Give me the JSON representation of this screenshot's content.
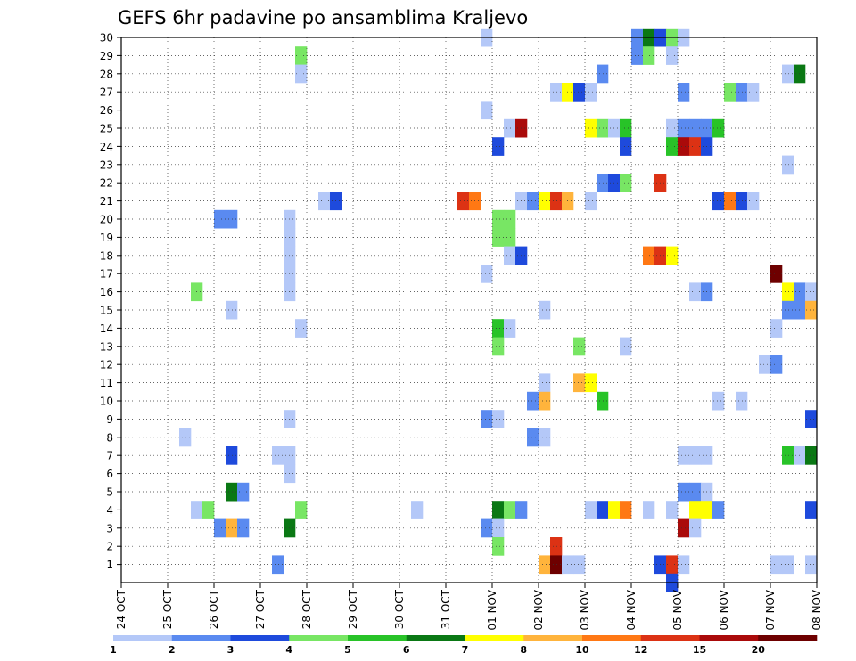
{
  "chart_data": {
    "type": "heatmap",
    "title": "GEFS 6hr padavine po ansamblima Kraljevo",
    "xlabel": "",
    "ylabel": "",
    "x_tick_labels": [
      "24 OCT",
      "25 OCT",
      "26 OCT",
      "27 OCT",
      "28 OCT",
      "29 OCT",
      "30 OCT",
      "31 OCT",
      "01 NOV",
      "02 NOV",
      "03 NOV",
      "04 NOV",
      "05 NOV",
      "06 NOV",
      "07 NOV",
      "08 NOV"
    ],
    "y_tick_labels": [
      "1",
      "2",
      "3",
      "4",
      "5",
      "6",
      "7",
      "8",
      "9",
      "10",
      "11",
      "12",
      "13",
      "14",
      "15",
      "16",
      "17",
      "18",
      "19",
      "20",
      "21",
      "22",
      "23",
      "24",
      "25",
      "26",
      "27",
      "28",
      "29",
      "30"
    ],
    "x_range_days": [
      0,
      15
    ],
    "y_range": [
      0,
      30
    ],
    "grid": true,
    "time_step_hours": 6,
    "levels": [
      1,
      2,
      3,
      4,
      5,
      6,
      7,
      8,
      10,
      12,
      15,
      20
    ],
    "colorbar_labels": [
      "1",
      "2",
      "3",
      "4",
      "5",
      "6",
      "7",
      "8",
      "10",
      "12",
      "15",
      "20"
    ],
    "colors": [
      "#b4c8f8",
      "#5a8af0",
      "#1e4adc",
      "#78e664",
      "#28c328",
      "#0a7814",
      "#ffff00",
      "#ffb43c",
      "#ff7814",
      "#dc3214",
      "#aa0a0a",
      "#6e0000"
    ],
    "cells": [
      {
        "member": 30,
        "step": 31,
        "cls": 0
      },
      {
        "member": 30,
        "step": 44,
        "cls": 1
      },
      {
        "member": 30,
        "step": 45,
        "cls": 5
      },
      {
        "member": 30,
        "step": 46,
        "cls": 2
      },
      {
        "member": 30,
        "step": 47,
        "cls": 3
      },
      {
        "member": 30,
        "step": 48,
        "cls": 0
      },
      {
        "member": 29,
        "step": 15,
        "cls": 3
      },
      {
        "member": 29,
        "step": 44,
        "cls": 1
      },
      {
        "member": 29,
        "step": 45,
        "cls": 3
      },
      {
        "member": 29,
        "step": 47,
        "cls": 0
      },
      {
        "member": 28,
        "step": 15,
        "cls": 0
      },
      {
        "member": 28,
        "step": 41,
        "cls": 1
      },
      {
        "member": 28,
        "step": 57,
        "cls": 0
      },
      {
        "member": 28,
        "step": 58,
        "cls": 5
      },
      {
        "member": 27,
        "step": 37,
        "cls": 0
      },
      {
        "member": 27,
        "step": 38,
        "cls": 6
      },
      {
        "member": 27,
        "step": 39,
        "cls": 2
      },
      {
        "member": 27,
        "step": 40,
        "cls": 0
      },
      {
        "member": 27,
        "step": 48,
        "cls": 1
      },
      {
        "member": 27,
        "step": 52,
        "cls": 3
      },
      {
        "member": 27,
        "step": 53,
        "cls": 1
      },
      {
        "member": 27,
        "step": 54,
        "cls": 0
      },
      {
        "member": 26,
        "step": 31,
        "cls": 0
      },
      {
        "member": 25,
        "step": 33,
        "cls": 0
      },
      {
        "member": 25,
        "step": 34,
        "cls": 10
      },
      {
        "member": 25,
        "step": 40,
        "cls": 6
      },
      {
        "member": 25,
        "step": 41,
        "cls": 3
      },
      {
        "member": 25,
        "step": 42,
        "cls": 0
      },
      {
        "member": 25,
        "step": 43,
        "cls": 4
      },
      {
        "member": 25,
        "step": 47,
        "cls": 0
      },
      {
        "member": 25,
        "step": 48,
        "cls": 1
      },
      {
        "member": 25,
        "step": 49,
        "cls": 1
      },
      {
        "member": 25,
        "step": 50,
        "cls": 1
      },
      {
        "member": 25,
        "step": 51,
        "cls": 4
      },
      {
        "member": 24,
        "step": 32,
        "cls": 2
      },
      {
        "member": 24,
        "step": 43,
        "cls": 2
      },
      {
        "member": 24,
        "step": 47,
        "cls": 4
      },
      {
        "member": 24,
        "step": 48,
        "cls": 10
      },
      {
        "member": 24,
        "step": 49,
        "cls": 9
      },
      {
        "member": 24,
        "step": 50,
        "cls": 2
      },
      {
        "member": 23,
        "step": 57,
        "cls": 0
      },
      {
        "member": 22,
        "step": 41,
        "cls": 1
      },
      {
        "member": 22,
        "step": 42,
        "cls": 2
      },
      {
        "member": 22,
        "step": 43,
        "cls": 3
      },
      {
        "member": 22,
        "step": 46,
        "cls": 9
      },
      {
        "member": 21,
        "step": 17,
        "cls": 0
      },
      {
        "member": 21,
        "step": 18,
        "cls": 2
      },
      {
        "member": 21,
        "step": 29,
        "cls": 9
      },
      {
        "member": 21,
        "step": 30,
        "cls": 8
      },
      {
        "member": 21,
        "step": 34,
        "cls": 0
      },
      {
        "member": 21,
        "step": 35,
        "cls": 1
      },
      {
        "member": 21,
        "step": 36,
        "cls": 6
      },
      {
        "member": 21,
        "step": 37,
        "cls": 9
      },
      {
        "member": 21,
        "step": 38,
        "cls": 7
      },
      {
        "member": 21,
        "step": 40,
        "cls": 0
      },
      {
        "member": 21,
        "step": 51,
        "cls": 2
      },
      {
        "member": 21,
        "step": 52,
        "cls": 8
      },
      {
        "member": 21,
        "step": 53,
        "cls": 2
      },
      {
        "member": 21,
        "step": 54,
        "cls": 0
      },
      {
        "member": 20,
        "step": 8,
        "cls": 1
      },
      {
        "member": 20,
        "step": 9,
        "cls": 1
      },
      {
        "member": 20,
        "step": 14,
        "cls": 0
      },
      {
        "member": 20,
        "step": 32,
        "cls": 3
      },
      {
        "member": 20,
        "step": 33,
        "cls": 3
      },
      {
        "member": 19,
        "step": 14,
        "cls": 0
      },
      {
        "member": 19,
        "step": 32,
        "cls": 3
      },
      {
        "member": 19,
        "step": 33,
        "cls": 3
      },
      {
        "member": 18,
        "step": 14,
        "cls": 0
      },
      {
        "member": 18,
        "step": 33,
        "cls": 0
      },
      {
        "member": 18,
        "step": 34,
        "cls": 2
      },
      {
        "member": 18,
        "step": 45,
        "cls": 8
      },
      {
        "member": 18,
        "step": 46,
        "cls": 9
      },
      {
        "member": 18,
        "step": 47,
        "cls": 6
      },
      {
        "member": 17,
        "step": 14,
        "cls": 0
      },
      {
        "member": 17,
        "step": 31,
        "cls": 0
      },
      {
        "member": 17,
        "step": 56,
        "cls": 11
      },
      {
        "member": 16,
        "step": 6,
        "cls": 3
      },
      {
        "member": 16,
        "step": 14,
        "cls": 0
      },
      {
        "member": 16,
        "step": 49,
        "cls": 0
      },
      {
        "member": 16,
        "step": 50,
        "cls": 1
      },
      {
        "member": 16,
        "step": 57,
        "cls": 6
      },
      {
        "member": 16,
        "step": 58,
        "cls": 1
      },
      {
        "member": 16,
        "step": 59,
        "cls": 0
      },
      {
        "member": 15,
        "step": 9,
        "cls": 0
      },
      {
        "member": 15,
        "step": 36,
        "cls": 0
      },
      {
        "member": 15,
        "step": 57,
        "cls": 1
      },
      {
        "member": 15,
        "step": 58,
        "cls": 1
      },
      {
        "member": 15,
        "step": 59,
        "cls": 7
      },
      {
        "member": 14,
        "step": 15,
        "cls": 0
      },
      {
        "member": 14,
        "step": 32,
        "cls": 4
      },
      {
        "member": 14,
        "step": 33,
        "cls": 0
      },
      {
        "member": 14,
        "step": 56,
        "cls": 0
      },
      {
        "member": 13,
        "step": 32,
        "cls": 3
      },
      {
        "member": 13,
        "step": 39,
        "cls": 3
      },
      {
        "member": 13,
        "step": 43,
        "cls": 0
      },
      {
        "member": 12,
        "step": 55,
        "cls": 0
      },
      {
        "member": 12,
        "step": 56,
        "cls": 1
      },
      {
        "member": 11,
        "step": 36,
        "cls": 0
      },
      {
        "member": 11,
        "step": 39,
        "cls": 7
      },
      {
        "member": 11,
        "step": 40,
        "cls": 6
      },
      {
        "member": 10,
        "step": 35,
        "cls": 1
      },
      {
        "member": 10,
        "step": 36,
        "cls": 7
      },
      {
        "member": 10,
        "step": 41,
        "cls": 4
      },
      {
        "member": 10,
        "step": 51,
        "cls": 0
      },
      {
        "member": 10,
        "step": 53,
        "cls": 0
      },
      {
        "member": 9,
        "step": 14,
        "cls": 0
      },
      {
        "member": 9,
        "step": 31,
        "cls": 1
      },
      {
        "member": 9,
        "step": 32,
        "cls": 0
      },
      {
        "member": 9,
        "step": 59,
        "cls": 2
      },
      {
        "member": 8,
        "step": 5,
        "cls": 0
      },
      {
        "member": 8,
        "step": 35,
        "cls": 1
      },
      {
        "member": 8,
        "step": 36,
        "cls": 0
      },
      {
        "member": 7,
        "step": 9,
        "cls": 2
      },
      {
        "member": 7,
        "step": 13,
        "cls": 0
      },
      {
        "member": 7,
        "step": 14,
        "cls": 0
      },
      {
        "member": 7,
        "step": 48,
        "cls": 0
      },
      {
        "member": 7,
        "step": 49,
        "cls": 0
      },
      {
        "member": 7,
        "step": 50,
        "cls": 0
      },
      {
        "member": 7,
        "step": 57,
        "cls": 4
      },
      {
        "member": 7,
        "step": 58,
        "cls": 0
      },
      {
        "member": 7,
        "step": 59,
        "cls": 5
      },
      {
        "member": 6,
        "step": 14,
        "cls": 0
      },
      {
        "member": 5,
        "step": 9,
        "cls": 5
      },
      {
        "member": 5,
        "step": 10,
        "cls": 1
      },
      {
        "member": 5,
        "step": 48,
        "cls": 1
      },
      {
        "member": 5,
        "step": 49,
        "cls": 1
      },
      {
        "member": 5,
        "step": 50,
        "cls": 0
      },
      {
        "member": 4,
        "step": 6,
        "cls": 0
      },
      {
        "member": 4,
        "step": 7,
        "cls": 3
      },
      {
        "member": 4,
        "step": 15,
        "cls": 3
      },
      {
        "member": 4,
        "step": 25,
        "cls": 0
      },
      {
        "member": 4,
        "step": 32,
        "cls": 5
      },
      {
        "member": 4,
        "step": 33,
        "cls": 3
      },
      {
        "member": 4,
        "step": 34,
        "cls": 1
      },
      {
        "member": 4,
        "step": 40,
        "cls": 0
      },
      {
        "member": 4,
        "step": 41,
        "cls": 2
      },
      {
        "member": 4,
        "step": 42,
        "cls": 6
      },
      {
        "member": 4,
        "step": 43,
        "cls": 8
      },
      {
        "member": 4,
        "step": 45,
        "cls": 0
      },
      {
        "member": 4,
        "step": 47,
        "cls": 0
      },
      {
        "member": 4,
        "step": 49,
        "cls": 6
      },
      {
        "member": 4,
        "step": 50,
        "cls": 6
      },
      {
        "member": 4,
        "step": 51,
        "cls": 1
      },
      {
        "member": 4,
        "step": 59,
        "cls": 2
      },
      {
        "member": 3,
        "step": 8,
        "cls": 1
      },
      {
        "member": 3,
        "step": 9,
        "cls": 7
      },
      {
        "member": 3,
        "step": 10,
        "cls": 1
      },
      {
        "member": 3,
        "step": 14,
        "cls": 5
      },
      {
        "member": 3,
        "step": 31,
        "cls": 1
      },
      {
        "member": 3,
        "step": 32,
        "cls": 0
      },
      {
        "member": 3,
        "step": 48,
        "cls": 10
      },
      {
        "member": 3,
        "step": 49,
        "cls": 0
      },
      {
        "member": 2,
        "step": 32,
        "cls": 3
      },
      {
        "member": 2,
        "step": 37,
        "cls": 9
      },
      {
        "member": 1,
        "step": 13,
        "cls": 1
      },
      {
        "member": 1,
        "step": 36,
        "cls": 7
      },
      {
        "member": 1,
        "step": 37,
        "cls": 11
      },
      {
        "member": 1,
        "step": 38,
        "cls": 0
      },
      {
        "member": 1,
        "step": 39,
        "cls": 0
      },
      {
        "member": 1,
        "step": 46,
        "cls": 2
      },
      {
        "member": 1,
        "step": 47,
        "cls": 9
      },
      {
        "member": 1,
        "step": 48,
        "cls": 0
      },
      {
        "member": 1,
        "step": 56,
        "cls": 0
      },
      {
        "member": 1,
        "step": 57,
        "cls": 0
      },
      {
        "member": 1,
        "step": 59,
        "cls": 0
      },
      {
        "member": 0,
        "step": 47,
        "cls": 2
      }
    ]
  }
}
